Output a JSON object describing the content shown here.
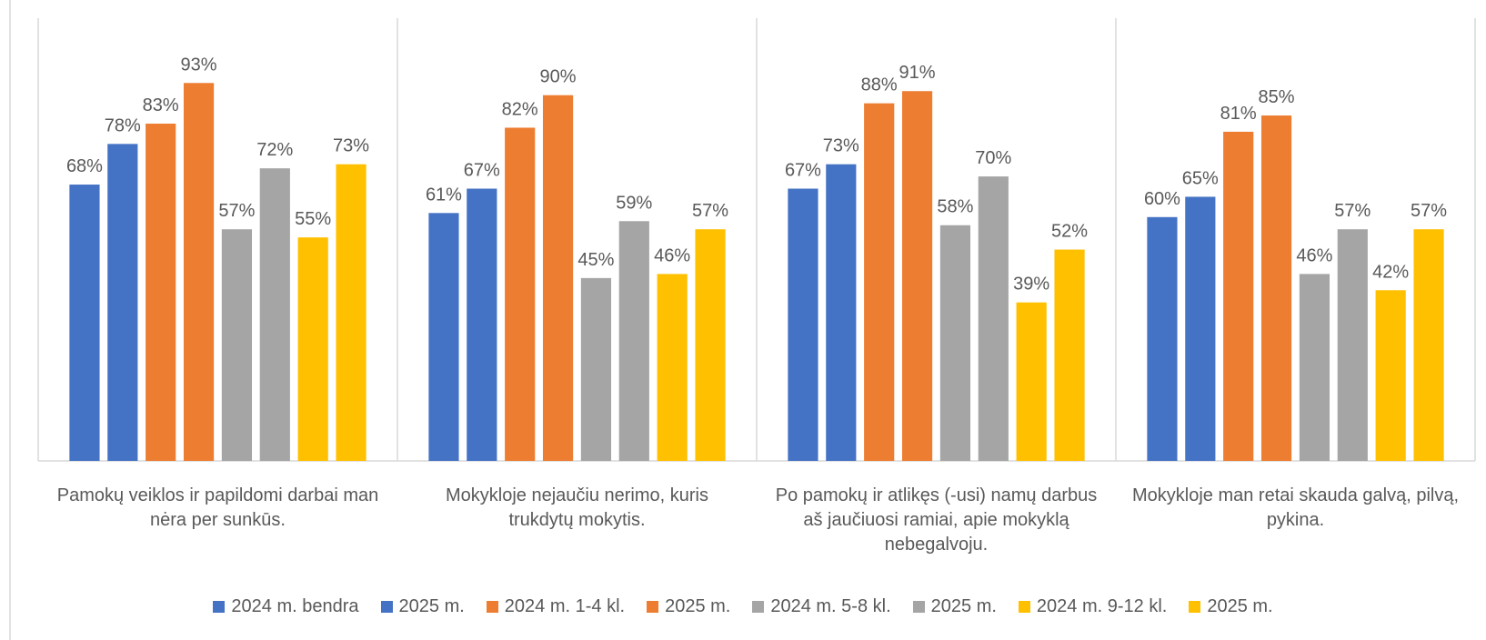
{
  "chart_data": {
    "type": "bar",
    "categories": [
      "Pamokų veiklos ir papildomi darbai man nėra per sunkūs.",
      "Mokykloje nejaučiu nerimo, kuris trukdytų mokytis.",
      "Po pamokų ir atlikęs (-usi) namų darbus aš jaučiuosi ramiai, apie mokyklą nebegalvoju.",
      "Mokykloje man retai skauda galvą, pilvą, pykina."
    ],
    "ylim": [
      0,
      100
    ],
    "legend": "bottom",
    "series": [
      {
        "name": "2024 m. bendra",
        "color": "#4472c4",
        "values": [
          68,
          61,
          67,
          60
        ],
        "value_labels": [
          "68%",
          "61%",
          "67%",
          "60%"
        ]
      },
      {
        "name": "2025 m.",
        "color": "#4472c4",
        "values": [
          78,
          67,
          73,
          65
        ],
        "value_labels": [
          "78%",
          "67%",
          "73%",
          "65%"
        ]
      },
      {
        "name": "2024 m. 1-4 kl.",
        "color": "#ed7d31",
        "values": [
          83,
          82,
          88,
          81
        ],
        "value_labels": [
          "83%",
          "82%",
          "88%",
          "81%"
        ]
      },
      {
        "name": "2025 m.",
        "color": "#ed7d31",
        "values": [
          93,
          90,
          91,
          85
        ],
        "value_labels": [
          "93%",
          "90%",
          "91%",
          "85%"
        ]
      },
      {
        "name": "2024 m. 5-8 kl.",
        "color": "#a5a5a5",
        "values": [
          57,
          45,
          58,
          46
        ],
        "value_labels": [
          "57%",
          "45%",
          "58%",
          "46%"
        ]
      },
      {
        "name": "2025 m.",
        "color": "#a5a5a5",
        "values": [
          72,
          59,
          70,
          57
        ],
        "value_labels": [
          "72%",
          "59%",
          "70%",
          "57%"
        ]
      },
      {
        "name": "2024 m. 9-12 kl.",
        "color": "#ffc000",
        "values": [
          55,
          46,
          39,
          42
        ],
        "value_labels": [
          "55%",
          "46%",
          "39%",
          "42%"
        ]
      },
      {
        "name": "2025 m.",
        "color": "#ffc000",
        "values": [
          73,
          57,
          52,
          57
        ],
        "value_labels": [
          "73%",
          "57%",
          "52%",
          "57%"
        ]
      }
    ]
  }
}
